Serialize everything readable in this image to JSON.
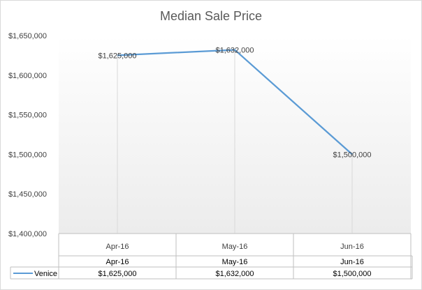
{
  "chart_data": {
    "type": "line",
    "title": "Median Sale Price",
    "categories": [
      "Apr-16",
      "May-16",
      "Jun-16"
    ],
    "series": [
      {
        "name": "Venice",
        "values": [
          1625000,
          1632000,
          1500000
        ],
        "labels": [
          "$1,625,000",
          "$1,632,000",
          "$1,500,000"
        ]
      }
    ],
    "ylim": [
      1400000,
      1650000
    ],
    "ytick_labels": [
      "$1,650,000",
      "$1,600,000",
      "$1,550,000",
      "$1,500,000",
      "$1,450,000",
      "$1,400,000"
    ],
    "grid": false,
    "drop_lines": true,
    "data_table": true,
    "line_color": "#5b9bd5"
  }
}
